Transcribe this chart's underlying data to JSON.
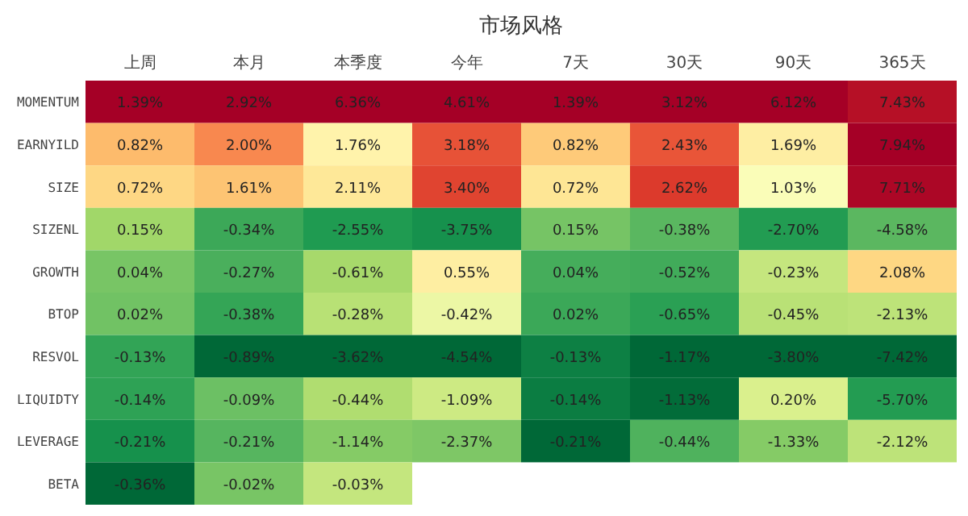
{
  "chart_data": {
    "type": "heatmap",
    "title": "市场风格",
    "categories": [
      "上周",
      "本月",
      "本季度",
      "今年",
      "7天",
      "30天",
      "90天",
      "365天"
    ],
    "y_categories": [
      "MOMENTUM",
      "EARNYILD",
      "SIZE",
      "SIZENL",
      "GROWTH",
      "BTOP",
      "RESVOL",
      "LIQUIDTY",
      "LEVERAGE",
      "BETA"
    ],
    "cells": [
      [
        1.39,
        2.92,
        6.36,
        4.61,
        1.39,
        3.12,
        6.12,
        7.43
      ],
      [
        0.82,
        2.0,
        1.76,
        3.18,
        0.82,
        2.43,
        1.69,
        7.94
      ],
      [
        0.72,
        1.61,
        2.11,
        3.4,
        0.72,
        2.62,
        1.03,
        7.71
      ],
      [
        0.15,
        -0.34,
        -2.55,
        -3.75,
        0.15,
        -0.38,
        -2.7,
        -4.58
      ],
      [
        0.04,
        -0.27,
        -0.61,
        0.55,
        0.04,
        -0.52,
        -0.23,
        2.08
      ],
      [
        0.02,
        -0.38,
        -0.28,
        -0.42,
        0.02,
        -0.65,
        -0.45,
        -2.13
      ],
      [
        -0.13,
        -0.89,
        -3.62,
        -4.54,
        -0.13,
        -1.17,
        -3.8,
        -7.42
      ],
      [
        -0.14,
        -0.09,
        -0.44,
        -1.09,
        -0.14,
        -1.13,
        0.2,
        -5.7
      ],
      [
        -0.21,
        -0.21,
        -1.14,
        -2.37,
        -0.21,
        -0.44,
        -1.33,
        -2.12
      ],
      [
        -0.36,
        -0.02,
        -0.03,
        null,
        null,
        null,
        null,
        null
      ]
    ],
    "cell_labels": [
      [
        "1.39%",
        "2.92%",
        "6.36%",
        "4.61%",
        "1.39%",
        "3.12%",
        "6.12%",
        "7.43%"
      ],
      [
        "0.82%",
        "2.00%",
        "1.76%",
        "3.18%",
        "0.82%",
        "2.43%",
        "1.69%",
        "7.94%"
      ],
      [
        "0.72%",
        "1.61%",
        "2.11%",
        "3.40%",
        "0.72%",
        "2.62%",
        "1.03%",
        "7.71%"
      ],
      [
        "0.15%",
        "-0.34%",
        "-2.55%",
        "-3.75%",
        "0.15%",
        "-0.38%",
        "-2.70%",
        "-4.58%"
      ],
      [
        "0.04%",
        "-0.27%",
        "-0.61%",
        "0.55%",
        "0.04%",
        "-0.52%",
        "-0.23%",
        "2.08%"
      ],
      [
        "0.02%",
        "-0.38%",
        "-0.28%",
        "-0.42%",
        "0.02%",
        "-0.65%",
        "-0.45%",
        "-2.13%"
      ],
      [
        "-0.13%",
        "-0.89%",
        "-3.62%",
        "-4.54%",
        "-0.13%",
        "-1.17%",
        "-3.80%",
        "-7.42%"
      ],
      [
        "-0.14%",
        "-0.09%",
        "-0.44%",
        "-1.09%",
        "-0.14%",
        "-1.13%",
        "0.20%",
        "-5.70%"
      ],
      [
        "-0.21%",
        "-0.21%",
        "-1.14%",
        "-2.37%",
        "-0.21%",
        "-0.44%",
        "-1.33%",
        "-2.12%"
      ],
      [
        "-0.36%",
        "-0.02%",
        "-0.03%",
        null,
        null,
        null,
        null,
        null
      ]
    ]
  }
}
